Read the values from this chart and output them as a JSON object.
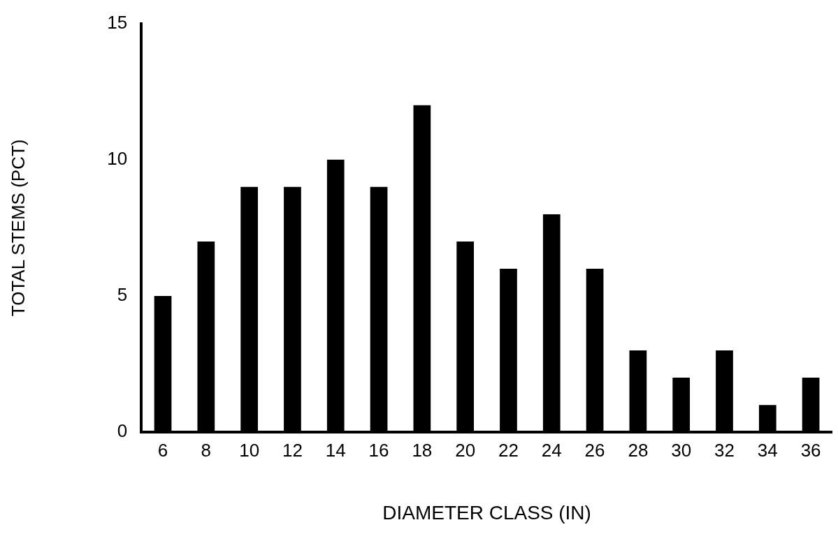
{
  "chart_data": {
    "type": "bar",
    "xlabel": "DIAMETER CLASS (IN)",
    "ylabel": "TOTAL STEMS (PCT)",
    "categories": [
      "6",
      "8",
      "10",
      "12",
      "14",
      "16",
      "18",
      "20",
      "22",
      "24",
      "26",
      "28",
      "30",
      "32",
      "34",
      "36"
    ],
    "values": [
      5,
      7,
      9,
      9,
      10,
      9,
      12,
      7,
      6,
      8,
      6,
      3,
      2,
      3,
      1,
      2
    ],
    "color": "#000000",
    "ylim": [
      0,
      15
    ],
    "yticks": [
      0,
      5,
      10,
      15
    ],
    "grid": false,
    "legend": false
  }
}
